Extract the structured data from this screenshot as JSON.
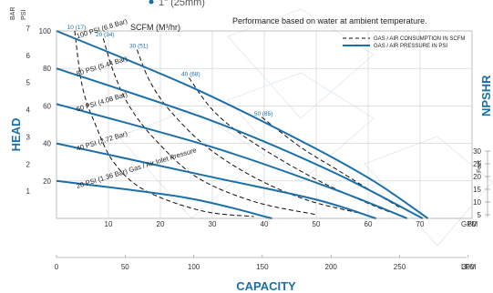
{
  "header": {
    "partial_title": "1\" (25mm)"
  },
  "chart_data": {
    "type": "line",
    "title": "Performance based on water at ambient temperature.",
    "xlabel": "CAPACITY",
    "ylabel": "HEAD",
    "right_label": "NPSHR",
    "x_gpm": {
      "ticks": [
        0,
        10,
        20,
        30,
        40,
        50,
        60,
        70,
        80
      ],
      "unit": "GPM",
      "range": [
        0,
        80
      ]
    },
    "x_lpm": {
      "ticks": [
        0,
        50,
        100,
        150,
        200,
        250,
        300
      ],
      "unit": "LPM"
    },
    "y_psi": {
      "ticks": [
        20,
        40,
        60,
        80,
        100
      ],
      "unit": "PSI",
      "range": [
        0,
        100
      ]
    },
    "y_bar": {
      "ticks": [
        1,
        2,
        3,
        4,
        5,
        6,
        7
      ],
      "unit": "BAR"
    },
    "npshr_axis": {
      "unit": "Feet",
      "ticks": [
        5,
        10,
        15,
        20,
        25,
        30
      ]
    },
    "scfm_label": "SCFM (M³/hr)",
    "legend": {
      "position": "top-right",
      "items": [
        {
          "label": "GAS / AIR CONSUMPTION IN SCFM",
          "style": "dashed",
          "color": "#111111"
        },
        {
          "label": "GAS / AIR PRESSURE IN PSI",
          "style": "solid",
          "color": "#1a6fa8"
        }
      ]
    },
    "series": [
      {
        "name": "100 PSI (6.8 Bar)",
        "points": [
          [
            0,
            100
          ],
          [
            26,
            70
          ],
          [
            48,
            40
          ],
          [
            61,
            20
          ],
          [
            71.5,
            0
          ]
        ]
      },
      {
        "name": "80 PSI (5.44 Bar)",
        "points": [
          [
            0,
            80
          ],
          [
            30,
            52
          ],
          [
            53,
            25
          ],
          [
            70.5,
            0
          ]
        ]
      },
      {
        "name": "60 PSI (4.08 Bar)",
        "points": [
          [
            0,
            61
          ],
          [
            30,
            38
          ],
          [
            53,
            16
          ],
          [
            67.5,
            0
          ]
        ]
      },
      {
        "name": "40 PSI (2.72 Bar)",
        "points": [
          [
            0,
            40
          ],
          [
            30,
            22
          ],
          [
            50,
            10
          ],
          [
            61.5,
            0
          ]
        ]
      },
      {
        "name": "20 PSI (1.36 Bar) Gas / Air Inlet Pressure",
        "points": [
          [
            0,
            20
          ],
          [
            25,
            11
          ],
          [
            41.5,
            0
          ]
        ]
      }
    ],
    "air_consumption": [
      {
        "label": "10 (17)",
        "points": [
          [
            3.5,
            100
          ],
          [
            5,
            70
          ],
          [
            7.5,
            50
          ],
          [
            11,
            30
          ],
          [
            17,
            15
          ],
          [
            28,
            4
          ],
          [
            38,
            1
          ]
        ]
      },
      {
        "label": "20 (34)",
        "points": [
          [
            9,
            96
          ],
          [
            11,
            78
          ],
          [
            14,
            60
          ],
          [
            19,
            42
          ],
          [
            27,
            22
          ],
          [
            38,
            9
          ],
          [
            50,
            2
          ]
        ]
      },
      {
        "label": "30 (51)",
        "points": [
          [
            15.5,
            90
          ],
          [
            18,
            73
          ],
          [
            22,
            57
          ],
          [
            29,
            38
          ],
          [
            38,
            22
          ],
          [
            48,
            10
          ],
          [
            58,
            3
          ]
        ]
      },
      {
        "label": "40 (68)",
        "points": [
          [
            25.5,
            75
          ],
          [
            30,
            58
          ],
          [
            36,
            44
          ],
          [
            44,
            30
          ],
          [
            52,
            18
          ],
          [
            60,
            8
          ],
          [
            64.5,
            3
          ]
        ]
      },
      {
        "label": "50 (85)",
        "points": [
          [
            39.5,
            54
          ],
          [
            47,
            38
          ],
          [
            54,
            26
          ],
          [
            61,
            14
          ],
          [
            66,
            6
          ]
        ]
      }
    ]
  }
}
